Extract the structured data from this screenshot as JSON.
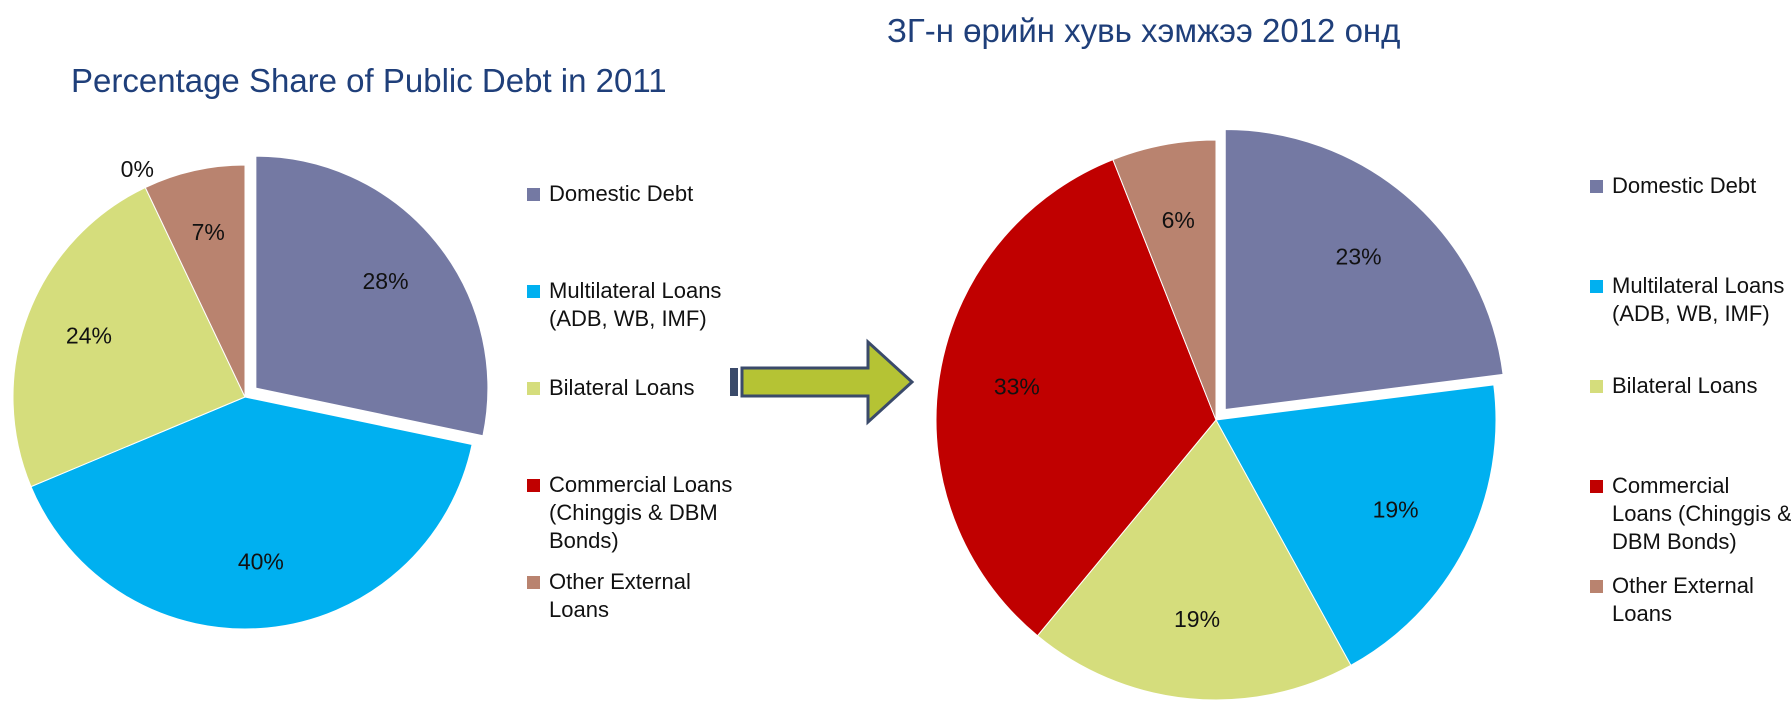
{
  "chart_data": [
    {
      "type": "pie",
      "title": "Percentage Share of Public Debt in 2011",
      "categories": [
        "Domestic Debt",
        "Multilateral Loans (ADB, WB, IMF)",
        "Bilateral Loans",
        "Commercial Loans (Chinggis & DBM Bonds)",
        "Other External Loans"
      ],
      "values": [
        28,
        40,
        24,
        0,
        7
      ],
      "value_labels": [
        "28%",
        "40%",
        "24%",
        "0%",
        "7%"
      ],
      "colors": [
        "#7479a3",
        "#00b0f0",
        "#d5dd7c",
        "#c00000",
        "#b9836f"
      ],
      "legend": "right"
    },
    {
      "type": "pie",
      "title": "ЗГ-н өрийн хувь хэмжээ 2012 онд",
      "categories": [
        "Domestic Debt",
        "Multilateral Loans (ADB, WB, IMF)",
        "Bilateral Loans",
        "Commercial Loans (Chinggis & DBM Bonds)",
        "Other External Loans"
      ],
      "values": [
        23,
        19,
        19,
        33,
        6
      ],
      "value_labels": [
        "23%",
        "19%",
        "19%",
        "33%",
        "6%"
      ],
      "colors": [
        "#7479a3",
        "#00b0f0",
        "#d5dd7c",
        "#c00000",
        "#b9836f"
      ],
      "legend": "right"
    }
  ]
}
